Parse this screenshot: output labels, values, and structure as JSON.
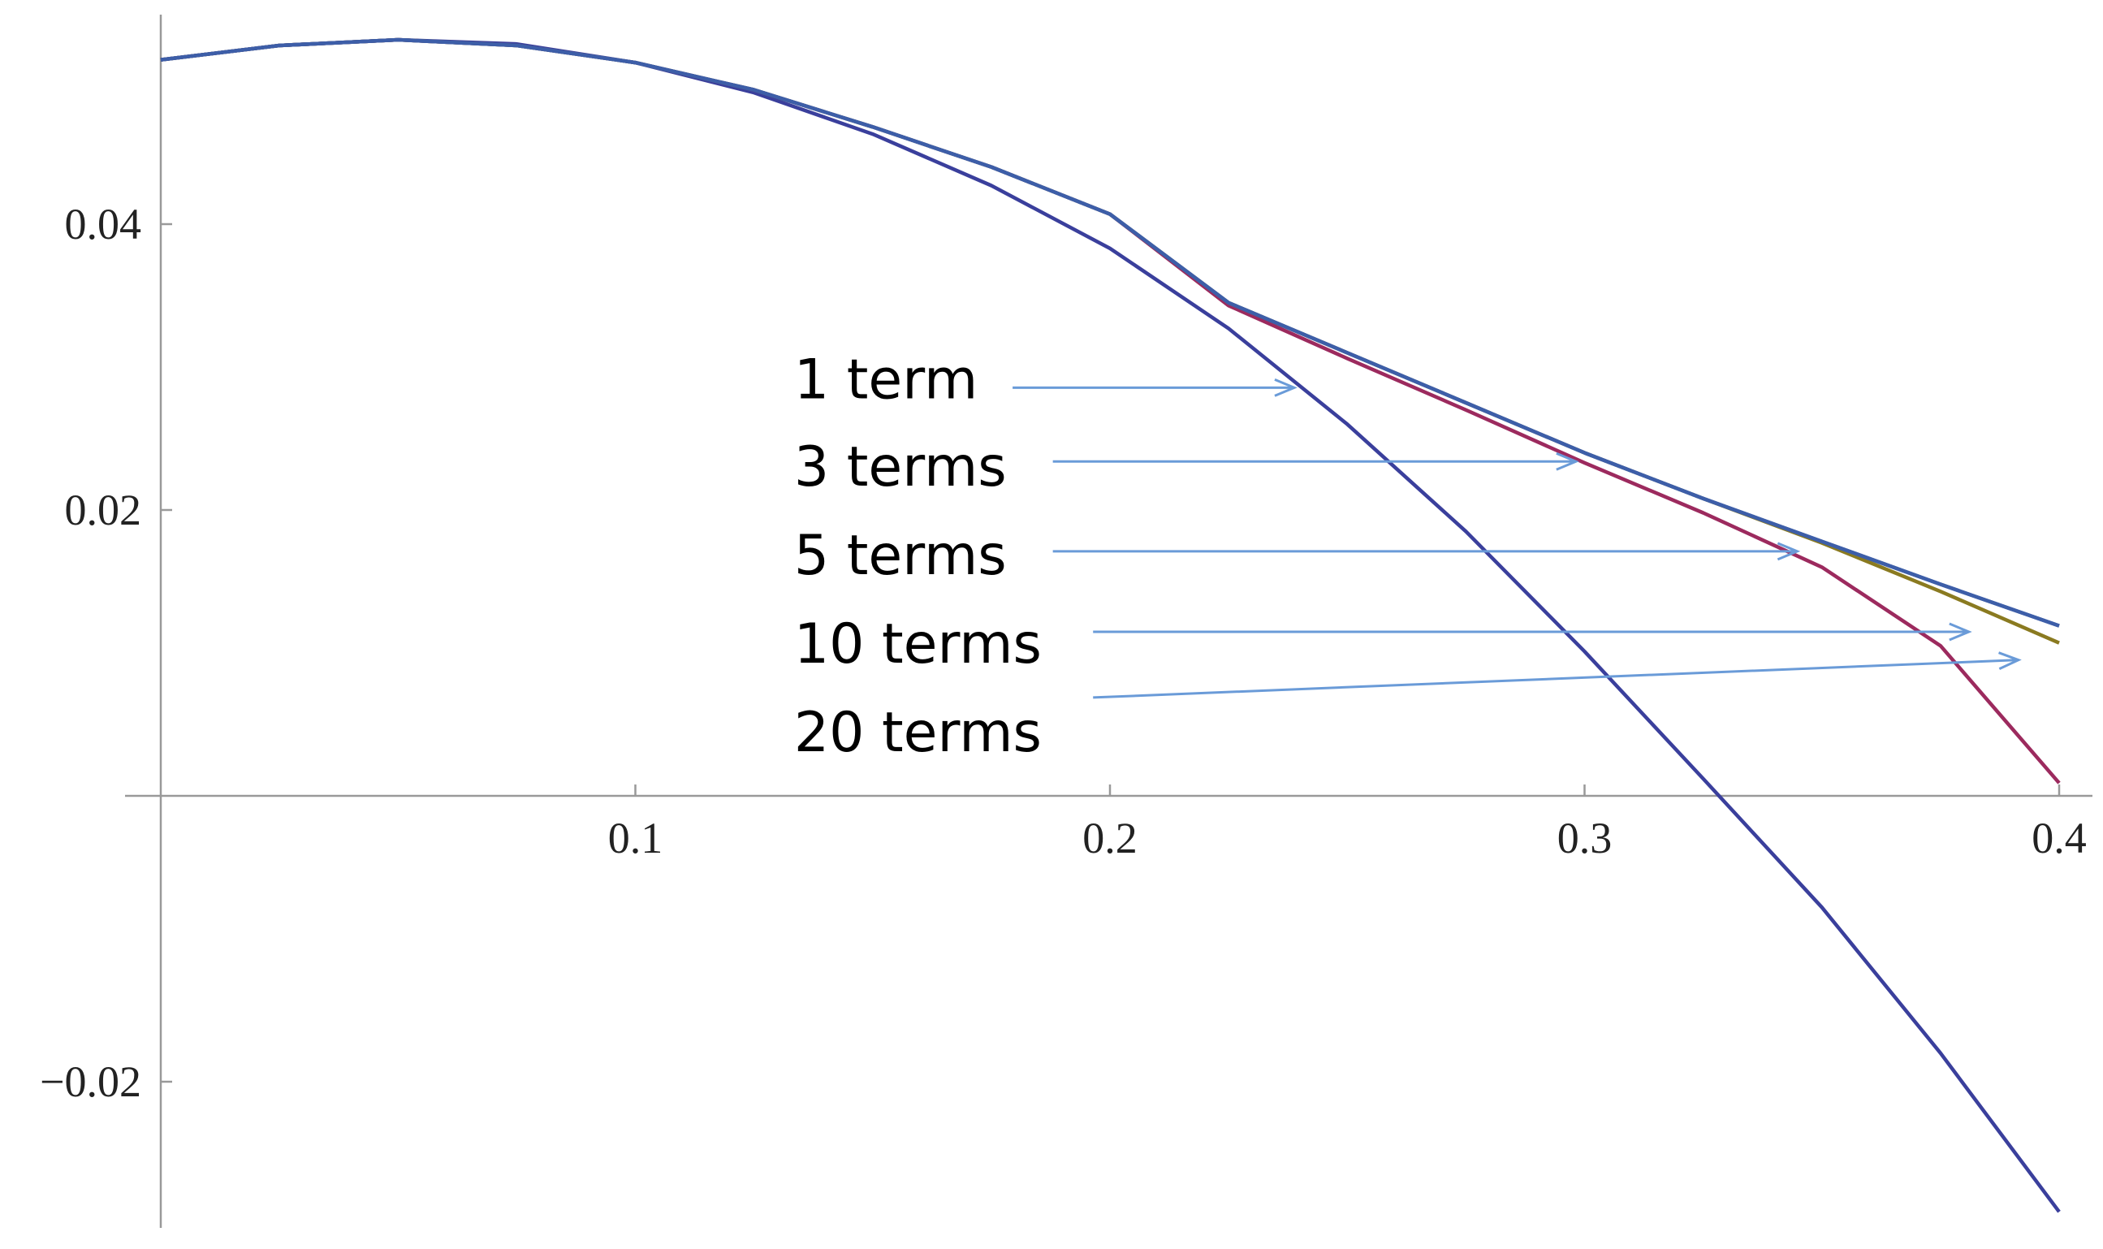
{
  "chart_data": {
    "type": "line",
    "x": [
      0,
      0.025,
      0.05,
      0.075,
      0.1,
      0.125,
      0.15,
      0.175,
      0.2,
      0.225,
      0.25,
      0.275,
      0.3,
      0.325,
      0.35,
      0.375,
      0.4
    ],
    "series": [
      {
        "name": "1 term",
        "color": "#3a3f9c",
        "values": [
          0.0515,
          0.0525,
          0.0529,
          0.0526,
          0.0513,
          0.0492,
          0.0463,
          0.0427,
          0.0383,
          0.0327,
          0.026,
          0.0185,
          0.0101,
          0.0012,
          -0.0078,
          -0.018,
          -0.0291
        ]
      },
      {
        "name": "3 terms",
        "color": "#9c2a5e",
        "values": [
          0.0515,
          0.0525,
          0.0529,
          0.0525,
          0.0513,
          0.0494,
          0.0468,
          0.044,
          0.0407,
          0.0343,
          0.0306,
          0.027,
          0.0233,
          0.0198,
          0.016,
          0.0105,
          0.0009
        ]
      },
      {
        "name": "5 terms",
        "color": "#8a7a20",
        "values": [
          0.0515,
          0.0525,
          0.0529,
          0.0525,
          0.0513,
          0.0494,
          0.0468,
          0.044,
          0.0407,
          0.0345,
          0.031,
          0.0275,
          0.024,
          0.0208,
          0.0177,
          0.0143,
          0.0107
        ]
      },
      {
        "name": "10 terms",
        "color": "#3d5ea8",
        "values": [
          0.0515,
          0.0525,
          0.0529,
          0.0525,
          0.0513,
          0.0494,
          0.0468,
          0.044,
          0.0407,
          0.0345,
          0.031,
          0.0275,
          0.024,
          0.0208,
          0.0178,
          0.0148,
          0.0119
        ]
      },
      {
        "name": "20 terms",
        "color": "#3d5ea8",
        "values": [
          0.0515,
          0.0525,
          0.0529,
          0.0525,
          0.0513,
          0.0494,
          0.0468,
          0.044,
          0.0407,
          0.0345,
          0.031,
          0.0275,
          0.024,
          0.0208,
          0.0178,
          0.0148,
          0.0119
        ]
      }
    ],
    "xlim": [
      0,
      0.4
    ],
    "ylim": [
      -0.03,
      0.055
    ],
    "xticks": [
      0.1,
      0.2,
      0.3,
      0.4
    ],
    "yticks": [
      0.04,
      0.02,
      {
        "value": -0.02,
        "label": "−0.02"
      }
    ],
    "arrow_color": "#6a9bd8"
  }
}
